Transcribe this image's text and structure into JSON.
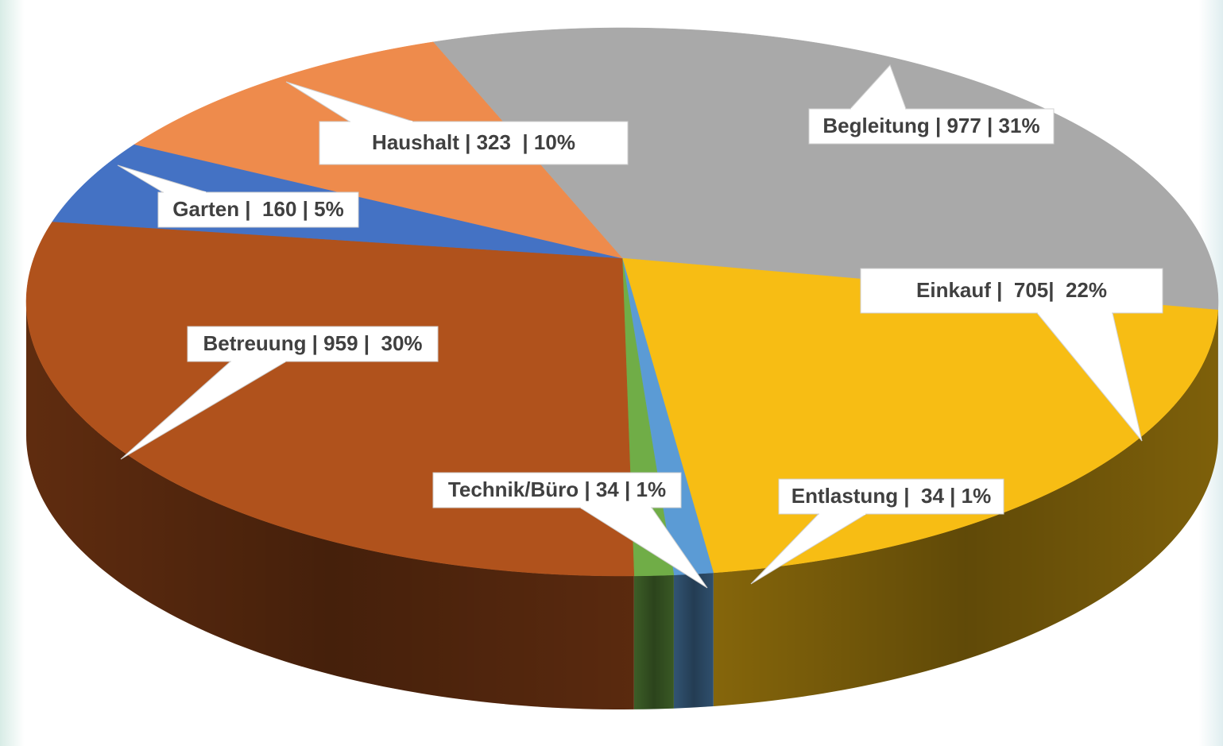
{
  "chart_data": {
    "type": "pie3d",
    "categories": [
      "Begleitung",
      "Einkauf",
      "Entlastung",
      "Technik/Büro",
      "Betreuung",
      "Garten",
      "Haushalt"
    ],
    "values": [
      977,
      705,
      34,
      34,
      959,
      160,
      323
    ],
    "value_labels": [
      "Begleitung | 977 | 31%",
      "Einkauf |  705|  22%",
      "Entlastung |  34 | 1%",
      "Technik/Büro | 34 | 1%",
      "Betreuung | 959 |  30%",
      "Garten |  160 | 5%",
      "Haushalt | 323  | 10%"
    ],
    "colors": [
      "#a9a9a9",
      "#f7bd14",
      "#5b9bd5",
      "#70ad47",
      "#b0521c",
      "#4472c4",
      "#ee8b4c"
    ]
  }
}
